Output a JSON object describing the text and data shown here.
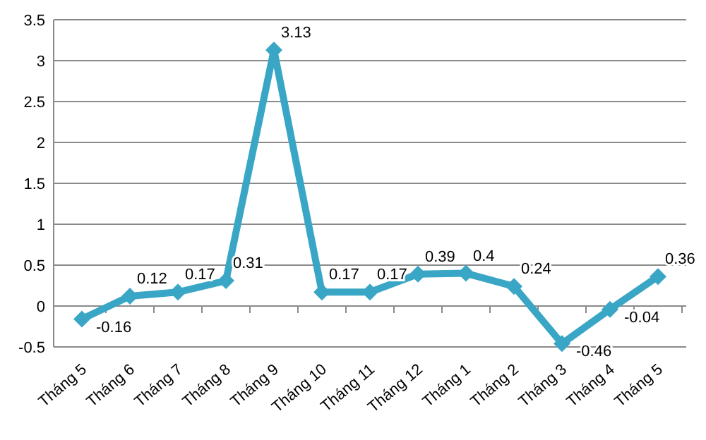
{
  "chart_data": {
    "type": "line",
    "categories": [
      "Tháng 5",
      "Tháng 6",
      "Tháng 7",
      "Tháng 8",
      "Tháng 9",
      "Tháng 10",
      "Tháng 11",
      "Tháng 12",
      "Tháng 1",
      "Tháng 2",
      "Tháng 3",
      "Tháng 4",
      "Tháng 5"
    ],
    "series": [
      {
        "color": "#3aa6c6",
        "values": [
          -0.16,
          0.12,
          0.17,
          0.31,
          3.13,
          0.17,
          0.17,
          0.39,
          0.4,
          0.24,
          -0.46,
          -0.04,
          0.36
        ]
      }
    ],
    "ylim": [
      -0.5,
      3.5
    ],
    "yticks": [
      -0.5,
      0,
      0.5,
      1,
      1.5,
      2,
      2.5,
      3,
      3.5
    ],
    "grid": "y",
    "marker": "diamond",
    "data_labels": true
  }
}
